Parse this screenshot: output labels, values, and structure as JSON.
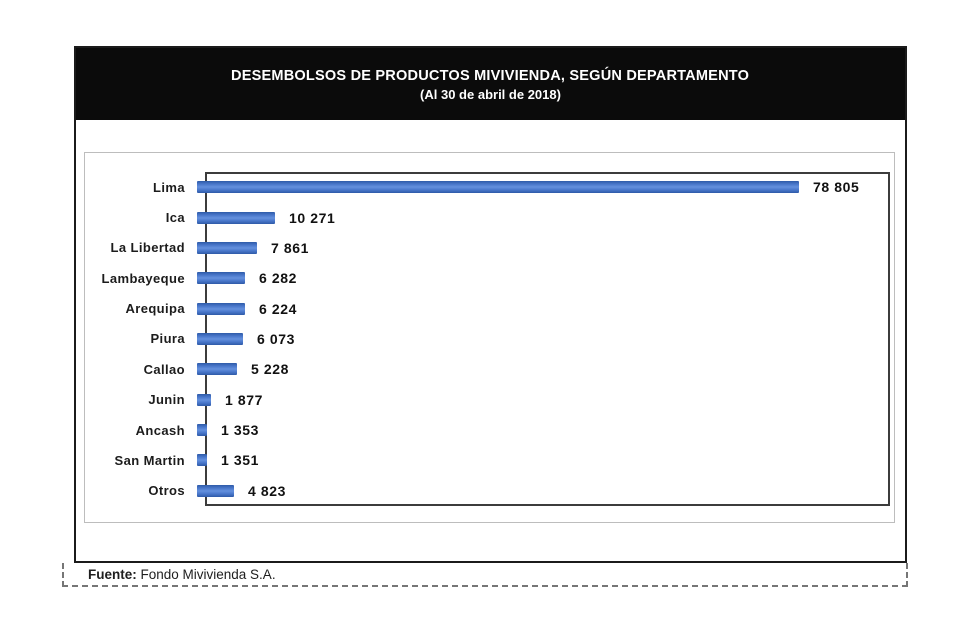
{
  "page": {
    "background": "#ffffff"
  },
  "header": {
    "title": "DESEMBOLSOS DE PRODUCTOS MIVIVIENDA, SEGÚN DEPARTAMENTO",
    "subtitle": "(Al 30 de abril de 2018)",
    "background": "#0b0b0b",
    "text_color": "#ffffff"
  },
  "chart_data": {
    "type": "bar",
    "orientation": "horizontal",
    "title": "DESEMBOLSOS DE PRODUCTOS MIVIVIENDA, SEGÚN DEPARTAMENTO (Al 30 de abril de 2018)",
    "categories": [
      "Lima",
      "Ica",
      "La Libertad",
      "Lambayeque",
      "Arequipa",
      "Piura",
      "Callao",
      "Junin",
      "Ancash",
      "San Martin",
      "Otros"
    ],
    "values": [
      78805,
      10271,
      7861,
      6282,
      6224,
      6073,
      5228,
      1877,
      1353,
      1351,
      4823
    ],
    "value_labels": [
      "78 805",
      "10 271",
      "7 861",
      "6 282",
      "6 224",
      "6 073",
      "5 228",
      "1 877",
      "1 353",
      "1 351",
      "4 823"
    ],
    "data_label_position": "outside-end",
    "bar_color": "#3f6fc1",
    "xlabel": "",
    "ylabel": "",
    "xlim": [
      0,
      90000
    ],
    "grid": false,
    "legend": false
  },
  "footer": {
    "source_label": "Fuente:",
    "source_text": " Fondo Mivivienda S.A."
  }
}
